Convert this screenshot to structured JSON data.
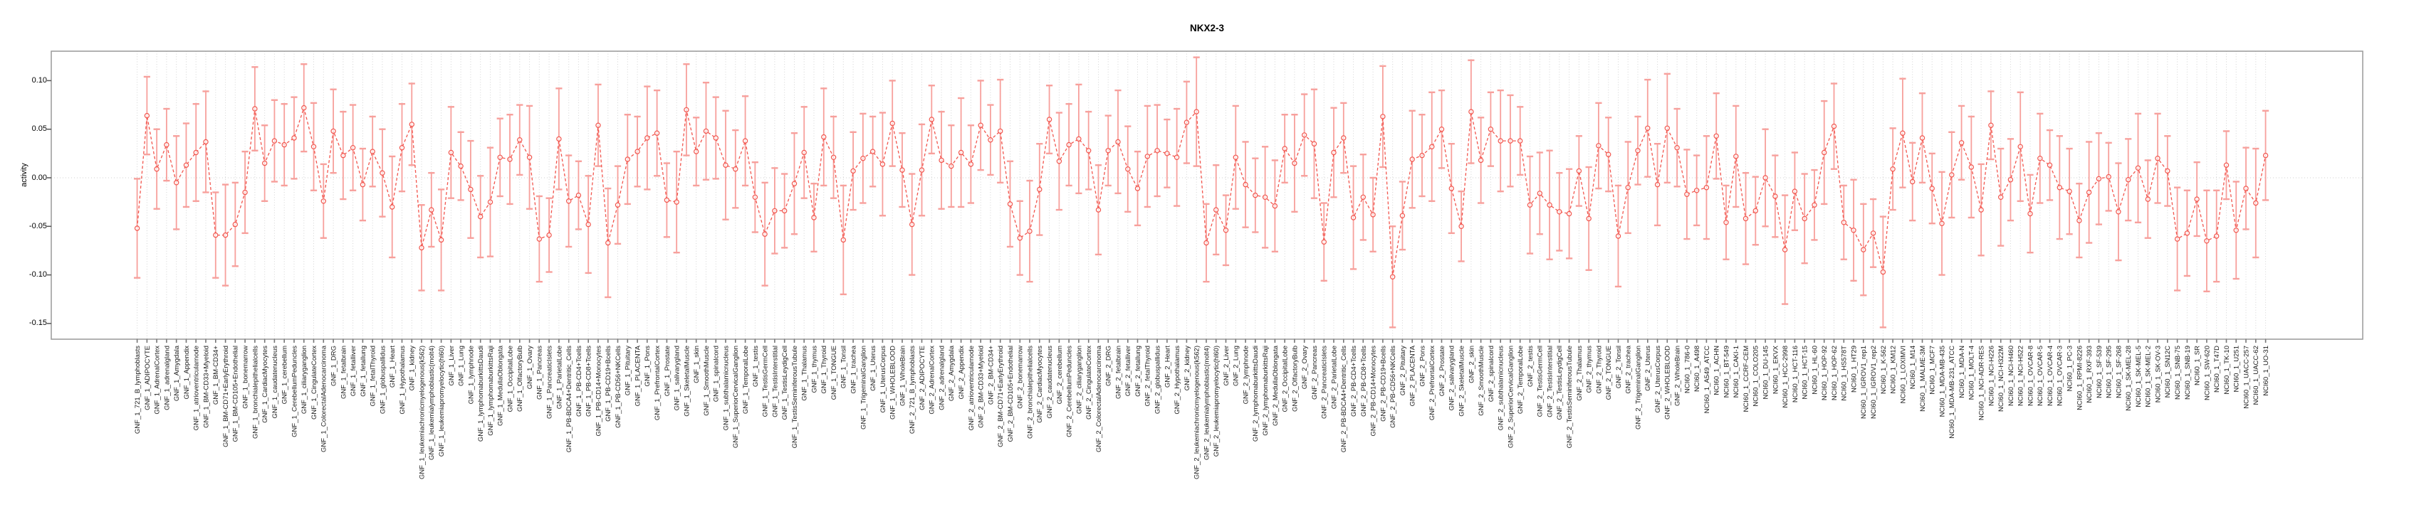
{
  "title": "NKX2-3",
  "y_axis_label": "activity",
  "chart_data": {
    "type": "line",
    "title": "NKX2-3",
    "xlabel": "",
    "ylabel": "activity",
    "ylim": [
      -0.166,
      0.13
    ],
    "yticks": [
      0.1,
      0.05,
      0.0,
      -0.05,
      -0.1,
      -0.15
    ],
    "ytick_labels": [
      "0.10",
      "0.05",
      "0.00",
      "-0.05",
      "-0.10",
      "-0.15"
    ],
    "grid": "vertical-dotted-per-category-plus-dotted-zero-line",
    "legend": "none",
    "marker": "open-circle",
    "line_style": "dashed",
    "colors": {
      "line": "#f2564e",
      "marker": "#f2564e",
      "error_bar": "#f7a09c",
      "grid": "#d4d4d4",
      "zero_line": "#cfcfcf",
      "frame": "#999999",
      "tick": "#777777",
      "text": "#000000",
      "x_label_text": "#1a1a1a"
    },
    "categories": [
      "GNF_1_721_B_lymphoblasts",
      "GNF_1_ADIPOCYTE",
      "GNF_1_AdrenalCortex",
      "GNF_1_adrenalgland",
      "GNF_1_Amygdala",
      "GNF_1_Appendix",
      "GNF_1_atrioventricularnode",
      "GNF_1_BM-CD33+Myeloid",
      "GNF_1_BM-CD34+",
      "GNF_1_BM-CD71+EarlyErythroid",
      "GNF_1_BM-CD105+Endothelial",
      "GNF_1_bonemarrow",
      "GNF_1_bronchialepithelialcells",
      "GNF_1_CardiacMyocytes",
      "GNF_1_caudatenucleus",
      "GNF_1_cerebellum",
      "GNF_1_CerebellumPeduncles",
      "GNF_1_ciliaryganglion",
      "GNF_1_CingulateCortex",
      "GNF_1_ColorectalAdenocarcinoma",
      "GNF_1_DRG",
      "GNF_1_fetalbrain",
      "GNF_1_fetalliver",
      "GNF_1_fetallung",
      "GNF_1_fetalThyroid",
      "GNF_1_globuspallidus",
      "GNF_1_Heart",
      "GNF_1_Hypothalamus",
      "GNF_1_kidney",
      "GNF_1_leukemiachronicmyelogenous(k562)",
      "GNF_1_leukemialymphoblastic(molt4)",
      "GNF_1_leukemiapromyelocytic(hl60)",
      "GNF_1_Liver",
      "GNF_1_Lung",
      "GNF_1_lymphnode",
      "GNF_1_lymphomaburkittsDaudi",
      "GNF_1_lymphomaburkittsRaji",
      "GNF_1_MedullaOblongata",
      "GNF_1_OccipitalLobe",
      "GNF_1_OlfactoryBulb",
      "GNF_1_Ovary",
      "GNF_1_Pancreas",
      "GNF_1_PancreaticIslets",
      "GNF_1_ParietalLobe",
      "GNF_1_PB-BDCA4+Dentritic_Cells",
      "GNF_1_PB-CD4+Tcells",
      "GNF_1_PB-CD8+Tcells",
      "GNF_1_PB-CD14+Monocytes",
      "GNF_1_PB-CD19+Bcells",
      "GNF_1_PB-CD56+NKCells",
      "GNF_1_Pituitary",
      "GNF_1_PLACENTA",
      "GNF_1_Pons",
      "GNF_1_PrefrontalCortex",
      "GNF_1_Prostate",
      "GNF_1_salivarygland",
      "GNF_1_SkeletalMuscle",
      "GNF_1_skin",
      "GNF_1_SmoothMuscle",
      "GNF_1_spinalcord",
      "GNF_1_subthalamicnucleus",
      "GNF_1_SuperiorCervicalGanglion",
      "GNF_1_TemporalLobe",
      "GNF_1_testis",
      "GNF_1_TestisGermCell",
      "GNF_1_TestisInterstitial",
      "GNF_1_TestisLeydigCell",
      "GNF_1_TestisSeminiferousTubule",
      "GNF_1_Thalamus",
      "GNF_1_thymus",
      "GNF_1_Thyroid",
      "GNF_1_TONGUE",
      "GNF_1_Tonsil",
      "GNF_1_trachea",
      "GNF_1_TrigeminalGanglion",
      "GNF_1_Uterus",
      "GNF_1_UterusCorpus",
      "GNF_1_WHOLEBLOOD",
      "GNF_1_WholeBrain",
      "GNF_2_721_B_lymphoblasts",
      "GNF_2_ADIPOCYTE",
      "GNF_2_AdrenalCortex",
      "GNF_2_adrenalgland",
      "GNF_2_Amygdala",
      "GNF_2_Appendix",
      "GNF_2_atrioventricularnode",
      "GNF_2_BM-CD33+Myeloid",
      "GNF_2_BM-CD34+",
      "GNF_2_BM-CD71+EarlyErythroid",
      "GNF_2_BM-CD105+Endothelial",
      "GNF_2_bonemarrow",
      "GNF_2_bronchialepithelialcells",
      "GNF_2_CardiacMyocytes",
      "GNF_2_caudatenucleus",
      "GNF_2_cerebellum",
      "GNF_2_CerebellumPeduncles",
      "GNF_2_ciliaryganglion",
      "GNF_2_CingulateCortex",
      "GNF_2_ColorectalAdenocarcinoma",
      "GNF_2_DRG",
      "GNF_2_fetalbrain",
      "GNF_2_fetalliver",
      "GNF_2_fetallung",
      "GNF_2_fetalThyroid",
      "GNF_2_globuspallidus",
      "GNF_2_Heart",
      "GNF_2_Hypothalamus",
      "GNF_2_kidney",
      "GNF_2_leukemiachronicmyelogenous(k562)",
      "GNF_2_leukemialymphoblastic(molt4)",
      "GNF_2_leukemiapromyelocytic(hl60)",
      "GNF_2_Liver",
      "GNF_2_Lung",
      "GNF_2_lymphnode",
      "GNF_2_lymphomaburkittsDaudi",
      "GNF_2_lymphomaburkittsRaji",
      "GNF_2_MedullaOblongata",
      "GNF_2_OccipitalLobe",
      "GNF_2_OlfactoryBulb",
      "GNF_2_Ovary",
      "GNF_2_Pancreas",
      "GNF_2_PancreaticIslets",
      "GNF_2_ParietalLobe",
      "GNF_2_PB-BDCA4+Dentritic_Cells",
      "GNF_2_PB-CD4+Tcells",
      "GNF_2_PB-CD8+Tcells",
      "GNF_2_PB-CD14+Monocytes",
      "GNF_2_PB-CD19+Bcells",
      "GNF_2_PB-CD56+NKCells",
      "GNF_2_Pituitary",
      "GNF_2_PLACENTA",
      "GNF_2_Pons",
      "GNF_2_PrefrontalCortex",
      "GNF_2_Prostate",
      "GNF_2_salivarygland",
      "GNF_2_SkeletalMuscle",
      "GNF_2_skin",
      "GNF_2_SmoothMuscle",
      "GNF_2_spinalcord",
      "GNF_2_subthalamicnucleus",
      "GNF_2_SuperiorCervicalGanglion",
      "GNF_2_TemporalLobe",
      "GNF_2_testis",
      "GNF_2_TestisGermCell",
      "GNF_2_TestisInterstitial",
      "GNF_2_TestisLeydigCell",
      "GNF_2_TestisSeminiferousTubule",
      "GNF_2_Thalamus",
      "GNF_2_thymus",
      "GNF_2_Thyroid",
      "GNF_2_TONGUE",
      "GNF_2_Tonsil",
      "GNF_2_trachea",
      "GNF_2_TrigeminalGanglion",
      "GNF_2_Uterus",
      "GNF_2_UterusCorpus",
      "GNF_2_WHOLEBLOOD",
      "GNF_2_WholeBrain",
      "NCI60_1_786-0",
      "NCI60_1_A498",
      "NCI60_1_A549_ATCC",
      "NCI60_1_ACHN",
      "NCI60_1_BT-549",
      "NCI60_1_CAKI-1",
      "NCI60_1_CCRF-CEM",
      "NCI60_1_COLO205",
      "NCI60_1_DU-145",
      "NCI60_1_EKVX",
      "NCI60_1_HCC-2998",
      "NCI60_1_HCT-116",
      "NCI60_1_HCT-15",
      "NCI60_1_HL-60",
      "NCI60_1_HOP-92",
      "NCI60_1_HOP-62",
      "NCI60_1_HS578T",
      "NCI60_1_HT29",
      "NCI60_1_IGROV1_rep1",
      "NCI60_1_IGROV1_rep2",
      "NCI60_1_K-562",
      "NCI60_1_KM12",
      "NCI60_1_LOXIMVI",
      "NCI60_1_M14",
      "NCI60_1_MALME-3M",
      "NCI60_1_MCF7",
      "NCI60_1_MDA-MB-435",
      "NCI60_1_MDA-MB-231_ATCC",
      "NCI60_1_MDA-N",
      "NCI60_1_MOLT-4",
      "NCI60_1_NCI-ADR-RES",
      "NCI60_1_NCI-H226",
      "NCI60_1_NCI-H322M",
      "NCI60_1_NCI-H460",
      "NCI60_1_NCI-H522",
      "NCI60_1_OVCAR-8",
      "NCI60_1_OVCAR-5",
      "NCI60_1_OVCAR-4",
      "NCI60_1_OVCAR-3",
      "NCI60_1_PC-3",
      "NCI60_1_RPMI-8226",
      "NCI60_1_RXF-393",
      "NCI60_1_SF-539",
      "NCI60_1_SF-295",
      "NCI60_1_SF-268",
      "NCI60_1_SK-MEL-28",
      "NCI60_1_SK-MEL-5",
      "NCI60_1_SK-MEL-2",
      "NCI60_1_SK-OV-3",
      "NCI60_1_SN12C",
      "NCI60_1_SNB-75",
      "NCI60_1_SNB-19",
      "NCI60_1_SR",
      "NCI60_1_SW-620",
      "NCI60_1_T47D",
      "NCI60_1_TK-10",
      "NCI60_1_U251",
      "NCI60_1_UACC-257",
      "NCI60_1_UACC-62",
      "NCI60_1_UO-31"
    ],
    "values": [
      -0.052,
      0.064,
      0.009,
      0.034,
      -0.005,
      0.013,
      0.026,
      0.037,
      -0.059,
      -0.059,
      -0.048,
      -0.015,
      0.071,
      0.015,
      0.038,
      0.034,
      0.041,
      0.072,
      0.032,
      -0.024,
      0.048,
      0.023,
      0.031,
      -0.007,
      0.027,
      0.005,
      -0.03,
      0.031,
      0.055,
      -0.072,
      -0.033,
      -0.064,
      0.026,
      0.012,
      -0.012,
      -0.04,
      -0.025,
      0.021,
      0.019,
      0.039,
      0.021,
      -0.063,
      -0.059,
      0.04,
      -0.024,
      -0.018,
      -0.048,
      0.054,
      -0.067,
      -0.028,
      0.019,
      0.027,
      0.041,
      0.046,
      -0.023,
      -0.025,
      0.07,
      0.027,
      0.048,
      0.041,
      0.013,
      0.009,
      0.038,
      -0.02,
      -0.058,
      -0.034,
      -0.034,
      -0.006,
      0.026,
      -0.041,
      0.042,
      0.021,
      -0.064,
      0.007,
      0.02,
      0.027,
      0.014,
      0.056,
      0.008,
      -0.048,
      0.008,
      0.06,
      0.018,
      0.012,
      0.026,
      0.014,
      0.054,
      0.039,
      0.048,
      -0.027,
      -0.062,
      -0.055,
      -0.012,
      0.06,
      0.017,
      0.034,
      0.04,
      0.028,
      -0.033,
      0.028,
      0.037,
      0.009,
      -0.011,
      0.022,
      0.028,
      0.025,
      0.021,
      0.057,
      0.068,
      -0.067,
      -0.033,
      -0.054,
      0.021,
      -0.007,
      -0.018,
      -0.02,
      -0.029,
      0.03,
      0.015,
      0.044,
      0.035,
      -0.066,
      0.026,
      0.041,
      -0.041,
      -0.02,
      -0.038,
      0.063,
      -0.102,
      -0.039,
      0.019,
      0.023,
      0.032,
      0.05,
      -0.011,
      -0.05,
      0.068,
      0.018,
      0.05,
      0.038,
      0.038,
      0.038,
      -0.028,
      -0.016,
      -0.028,
      -0.035,
      -0.037,
      0.007,
      -0.042,
      0.033,
      0.024,
      -0.06,
      -0.01,
      0.028,
      0.051,
      -0.007,
      0.051,
      0.031,
      -0.017,
      -0.013,
      -0.01,
      0.043,
      -0.046,
      0.022,
      -0.042,
      -0.034,
      0.0,
      -0.019,
      -0.074,
      -0.014,
      -0.042,
      -0.028,
      0.026,
      0.053,
      -0.046,
      -0.054,
      -0.074,
      -0.057,
      -0.097,
      0.009,
      0.046,
      -0.004,
      0.041,
      -0.011,
      -0.047,
      0.003,
      0.036,
      0.011,
      -0.033,
      0.054,
      -0.02,
      -0.002,
      0.032,
      -0.037,
      0.02,
      0.013,
      -0.01,
      -0.014,
      -0.044,
      -0.015,
      -0.001,
      0.001,
      -0.035,
      -0.002,
      0.01,
      -0.022,
      0.02,
      0.007,
      -0.063,
      -0.057,
      -0.022,
      -0.065,
      -0.06,
      0.013,
      -0.054,
      -0.011,
      -0.026,
      0.023
    ],
    "error": [
      0.051,
      0.04,
      0.041,
      0.037,
      0.048,
      0.043,
      0.05,
      0.052,
      0.044,
      0.052,
      0.043,
      0.042,
      0.043,
      0.039,
      0.042,
      0.042,
      0.042,
      0.045,
      0.045,
      0.038,
      0.043,
      0.045,
      0.044,
      0.037,
      0.036,
      0.045,
      0.052,
      0.045,
      0.042,
      0.044,
      0.038,
      0.052,
      0.047,
      0.035,
      0.05,
      0.042,
      0.056,
      0.04,
      0.046,
      0.036,
      0.053,
      0.044,
      0.038,
      0.052,
      0.047,
      0.035,
      0.05,
      0.042,
      0.056,
      0.04,
      0.046,
      0.036,
      0.053,
      0.044,
      0.038,
      0.052,
      0.047,
      0.035,
      0.05,
      0.042,
      0.056,
      0.04,
      0.046,
      0.036,
      0.053,
      0.044,
      0.038,
      0.052,
      0.047,
      0.035,
      0.05,
      0.042,
      0.056,
      0.04,
      0.046,
      0.036,
      0.053,
      0.044,
      0.038,
      0.052,
      0.047,
      0.035,
      0.05,
      0.042,
      0.056,
      0.04,
      0.046,
      0.036,
      0.053,
      0.044,
      0.038,
      0.052,
      0.047,
      0.035,
      0.05,
      0.042,
      0.056,
      0.04,
      0.046,
      0.036,
      0.053,
      0.044,
      0.038,
      0.052,
      0.047,
      0.035,
      0.05,
      0.042,
      0.056,
      0.04,
      0.046,
      0.036,
      0.053,
      0.044,
      0.038,
      0.052,
      0.047,
      0.035,
      0.05,
      0.042,
      0.056,
      0.04,
      0.046,
      0.036,
      0.053,
      0.044,
      0.038,
      0.052,
      0.052,
      0.035,
      0.05,
      0.042,
      0.056,
      0.04,
      0.046,
      0.036,
      0.053,
      0.044,
      0.038,
      0.052,
      0.047,
      0.035,
      0.05,
      0.042,
      0.056,
      0.04,
      0.046,
      0.036,
      0.053,
      0.044,
      0.038,
      0.052,
      0.047,
      0.035,
      0.05,
      0.042,
      0.056,
      0.04,
      0.046,
      0.036,
      0.053,
      0.044,
      0.038,
      0.052,
      0.047,
      0.035,
      0.05,
      0.042,
      0.056,
      0.04,
      0.046,
      0.036,
      0.053,
      0.044,
      0.038,
      0.052,
      0.047,
      0.035,
      0.057,
      0.042,
      0.056,
      0.04,
      0.046,
      0.036,
      0.053,
      0.044,
      0.038,
      0.052,
      0.047,
      0.035,
      0.05,
      0.042,
      0.056,
      0.04,
      0.046,
      0.036,
      0.053,
      0.044,
      0.038,
      0.052,
      0.047,
      0.035,
      0.05,
      0.042,
      0.056,
      0.04,
      0.046,
      0.036,
      0.053,
      0.044,
      0.038,
      0.052,
      0.047,
      0.035,
      0.05,
      0.042,
      0.056,
      0.046
    ]
  }
}
